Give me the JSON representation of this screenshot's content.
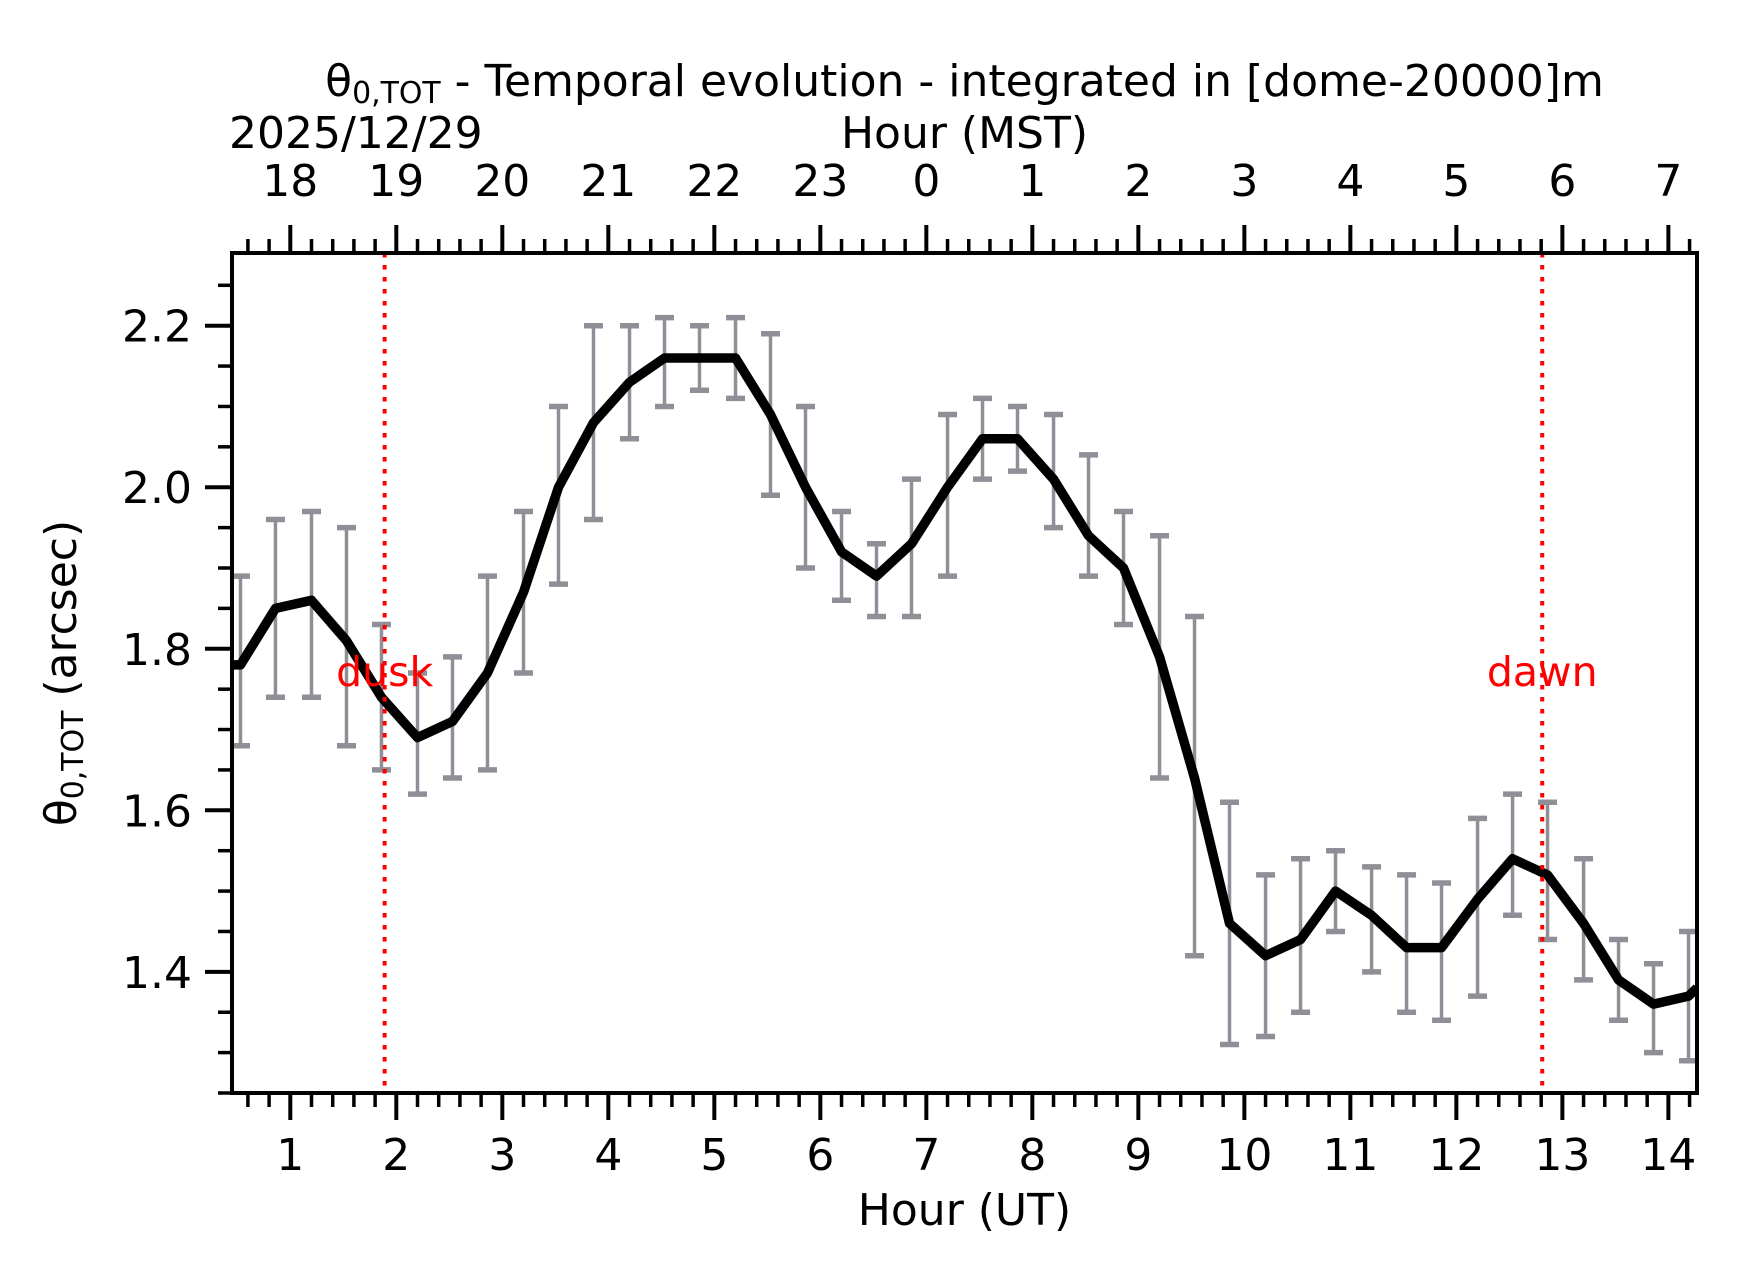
{
  "figure": {
    "title": {
      "theta": "θ",
      "sub": "0,TOT",
      "rest": " - Temporal evolution - integrated in [dome-20000]m"
    },
    "date_label": "2025/12/29",
    "top_axis_label": "Hour (MST)",
    "bottom_axis_label": "Hour (UT)",
    "y_axis_label": {
      "theta": "θ",
      "sub": "0,TOT",
      "rest": " (arcsec)"
    }
  },
  "chart_data": {
    "type": "line",
    "title": "θ0,TOT - Temporal evolution - integrated in [dome-20000]m",
    "date": "2025/12/29",
    "xlabel": "Hour (UT)",
    "xlabel_top": "Hour (MST)",
    "ylabel": "θ0,TOT (arcsec)",
    "xlim": [
      0.45,
      14.27
    ],
    "ylim": [
      1.25,
      2.29
    ],
    "grid": false,
    "x_major_ticks": [
      1,
      2,
      3,
      4,
      5,
      6,
      7,
      8,
      9,
      10,
      11,
      12,
      13,
      14
    ],
    "x_top_tick_labels": [
      "18",
      "19",
      "20",
      "21",
      "22",
      "23",
      "0",
      "1",
      "2",
      "3",
      "4",
      "5",
      "6",
      "7"
    ],
    "x_minor_step": 0.2,
    "y_major_ticks": [
      1.4,
      1.6,
      1.8,
      2.0,
      2.2
    ],
    "y_minor_step": 0.05,
    "series": [
      {
        "name": "theta0_tot_integrated",
        "x": [
          0.53,
          0.86,
          1.2,
          1.53,
          1.86,
          2.2,
          2.53,
          2.86,
          3.2,
          3.53,
          3.86,
          4.2,
          4.53,
          4.86,
          5.2,
          5.53,
          5.86,
          6.2,
          6.53,
          6.86,
          7.2,
          7.53,
          7.86,
          8.2,
          8.53,
          8.86,
          9.2,
          9.53,
          9.86,
          10.2,
          10.53,
          10.86,
          11.2,
          11.53,
          11.86,
          12.2,
          12.53,
          12.86,
          13.2,
          13.53,
          13.86,
          14.19
        ],
        "y": [
          1.78,
          1.85,
          1.86,
          1.81,
          1.74,
          1.69,
          1.71,
          1.77,
          1.87,
          2.0,
          2.08,
          2.13,
          2.16,
          2.16,
          2.16,
          2.09,
          2.0,
          1.92,
          1.89,
          1.93,
          2.0,
          2.06,
          2.06,
          2.01,
          1.94,
          1.9,
          1.79,
          1.64,
          1.46,
          1.42,
          1.44,
          1.5,
          1.47,
          1.43,
          1.43,
          1.49,
          1.54,
          1.52,
          1.46,
          1.39,
          1.36,
          1.37
        ],
        "err_lo": [
          1.68,
          1.74,
          1.74,
          1.68,
          1.65,
          1.62,
          1.64,
          1.65,
          1.77,
          1.88,
          1.96,
          2.06,
          2.1,
          2.12,
          2.11,
          1.99,
          1.9,
          1.86,
          1.84,
          1.84,
          1.89,
          2.01,
          2.02,
          1.95,
          1.89,
          1.83,
          1.64,
          1.42,
          1.31,
          1.32,
          1.35,
          1.45,
          1.4,
          1.35,
          1.34,
          1.37,
          1.47,
          1.44,
          1.39,
          1.34,
          1.3,
          1.29
        ],
        "err_hi": [
          1.89,
          1.96,
          1.97,
          1.95,
          1.83,
          1.77,
          1.79,
          1.89,
          1.97,
          2.1,
          2.2,
          2.2,
          2.21,
          2.2,
          2.21,
          2.19,
          2.1,
          1.97,
          1.93,
          2.01,
          2.09,
          2.11,
          2.1,
          2.09,
          2.04,
          1.97,
          1.94,
          1.84,
          1.61,
          1.52,
          1.54,
          1.55,
          1.53,
          1.52,
          1.51,
          1.59,
          1.62,
          1.61,
          1.54,
          1.44,
          1.41,
          1.45
        ]
      }
    ],
    "line_start": [
      0.45,
      1.78
    ],
    "line_end": [
      14.27,
      1.38
    ],
    "events": [
      {
        "label": "dusk",
        "x": 1.89
      },
      {
        "label": "dawn",
        "x": 12.81
      }
    ],
    "colors": {
      "line": "#000000",
      "error_bars": "#8f9097",
      "events": "#ff0000",
      "background": "#ffffff"
    }
  }
}
